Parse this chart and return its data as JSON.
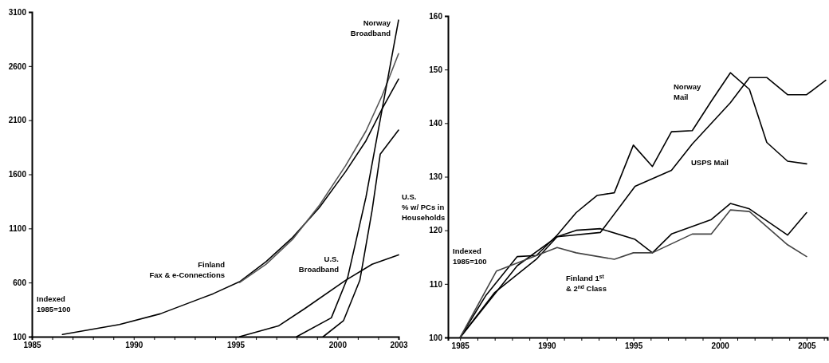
{
  "chart_data": [
    {
      "type": "line",
      "xlim": [
        1985,
        2003
      ],
      "xticks": [
        1985,
        {
          "value": 1986,
          "label": null
        },
        {
          "value": 1987,
          "label": null
        },
        {
          "value": 1988,
          "label": null
        },
        {
          "value": 1989,
          "label": null
        },
        1990,
        {
          "value": 1991,
          "label": null
        },
        {
          "value": 1992,
          "label": null
        },
        {
          "value": 1993,
          "label": null
        },
        {
          "value": 1994,
          "label": null
        },
        1995,
        {
          "value": 1996,
          "label": null
        },
        {
          "value": 1997,
          "label": null
        },
        {
          "value": 1998,
          "label": null
        },
        {
          "value": 1999,
          "label": null
        },
        2000,
        {
          "value": 2001,
          "label": null
        },
        {
          "value": 2002,
          "label": null
        },
        2003
      ],
      "ylim": [
        100,
        3100
      ],
      "yticks": [
        100,
        600,
        1100,
        1600,
        2100,
        2600,
        3100
      ],
      "series": [
        {
          "color": "#000000",
          "x": [
            1986.5,
            1989.3,
            1991.3,
            1993.9,
            1995.2,
            1996.5,
            1997.8,
            1999.1,
            2000.4,
            2001.4,
            2002.2,
            2003
          ],
          "values": [
            120,
            212,
            311,
            497,
            608,
            794,
            1017,
            1290,
            1625,
            1910,
            2207,
            2480
          ]
        },
        {
          "color": "#555555",
          "x": [
            1995.2,
            1996.5,
            1997.8,
            1999.1,
            2000.4,
            2001.4,
            2002.2,
            2003
          ],
          "values": [
            600,
            770,
            1000,
            1310,
            1680,
            2000,
            2330,
            2715
          ]
        },
        {
          "color": "#000000",
          "x": [
            1995.2,
            1997.1,
            1998.4,
            2000.4,
            2001.7,
            2003
          ],
          "values": [
            100,
            199,
            360,
            621,
            769,
            856
          ]
        },
        {
          "color": "#000000",
          "x": [
            1998,
            1999.7,
            2000.5,
            2001.4,
            2002.2,
            2003
          ],
          "values": [
            100,
            274,
            645,
            1389,
            2207,
            3025
          ]
        },
        {
          "color": "#000000",
          "x": [
            1999.3,
            2000.3,
            2001.1,
            2001.7,
            2002.1,
            2003
          ],
          "values": [
            100,
            249,
            621,
            1265,
            1786,
            2009
          ]
        }
      ],
      "annotations": [
        "Norway\nBroadband",
        "Finland\nFax & e-Connections",
        "U.S.\nBroadband",
        "U.S.\n% w/ PCs in\nHouseholds",
        "Indexed\n1985=100"
      ]
    },
    {
      "type": "line",
      "xlim": [
        1984.3,
        2006.2
      ],
      "xticks": [
        1985,
        {
          "value": 1986,
          "label": null
        },
        {
          "value": 1987,
          "label": null
        },
        {
          "value": 1988,
          "label": null
        },
        {
          "value": 1989,
          "label": null
        },
        1990,
        {
          "value": 1991,
          "label": null
        },
        {
          "value": 1992,
          "label": null
        },
        {
          "value": 1993,
          "label": null
        },
        {
          "value": 1994,
          "label": null
        },
        1995,
        {
          "value": 1996,
          "label": null
        },
        {
          "value": 1997,
          "label": null
        },
        {
          "value": 1998,
          "label": null
        },
        {
          "value": 1999,
          "label": null
        },
        2000,
        {
          "value": 2001,
          "label": null
        },
        {
          "value": 2002,
          "label": null
        },
        {
          "value": 2003,
          "label": null
        },
        {
          "value": 2004,
          "label": null
        },
        2005,
        {
          "value": 2006,
          "label": null
        }
      ],
      "ylim": [
        100,
        160
      ],
      "yticks": [
        100,
        110,
        120,
        130,
        140,
        150,
        160
      ],
      "series": [
        {
          "color": "#000000",
          "x": [
            1985,
            1986.5,
            1988.3,
            1989.4,
            1990.6,
            1991.7,
            1992.9,
            1993.9,
            1995,
            1996.1,
            1997.2,
            1998.4,
            1999.5,
            2000.6,
            2001.7,
            2002.7,
            2003.9,
            2005
          ],
          "values": [
            100,
            107.9,
            115.1,
            115.3,
            119.1,
            123.3,
            126.5,
            127,
            135.9,
            131.9,
            138.4,
            138.6,
            144.1,
            149.4,
            146.3,
            136.4,
            132.9,
            132.4
          ]
        },
        {
          "color": "#000000",
          "x": [
            1985,
            1988.3,
            1990.6,
            1993.1,
            1995.1,
            1997.2,
            1998.4,
            2000.6,
            2001.7,
            2002.7,
            2003.9,
            2005,
            2006.1
          ],
          "values": [
            100,
            113.4,
            118.8,
            119.6,
            128.2,
            131.2,
            136.1,
            143.8,
            148.5,
            148.5,
            145.3,
            145.3,
            148
          ]
        },
        {
          "color": "#000000",
          "x": [
            1985,
            1987,
            1989.4,
            1990.6,
            1991.7,
            1993.1,
            1995.1,
            1996.1,
            1997.2,
            1999.5,
            2000.6,
            2001.7,
            2003.9,
            2005
          ],
          "values": [
            100,
            108.4,
            114.6,
            118.8,
            120,
            120.3,
            118.3,
            115.8,
            119.3,
            122,
            125,
            124,
            119.1,
            123.3
          ]
        },
        {
          "color": "#444444",
          "x": [
            1985,
            1987.1,
            1987.9,
            1990.6,
            1991.7,
            1993.9,
            1995,
            1996.1,
            1998.4,
            1999.5,
            2000.6,
            2001.7,
            2003.9,
            2005
          ],
          "values": [
            100,
            112.4,
            113.4,
            116.8,
            115.8,
            114.6,
            115.8,
            115.8,
            119.3,
            119.3,
            123.8,
            123.5,
            117.3,
            115.1
          ]
        }
      ],
      "annotations": [
        "Norway\nMail",
        "USPS Mail",
        "Indexed\n1985=100",
        "Finland 1$^{st}$\n& 2$^{nd}$ Class"
      ]
    }
  ]
}
